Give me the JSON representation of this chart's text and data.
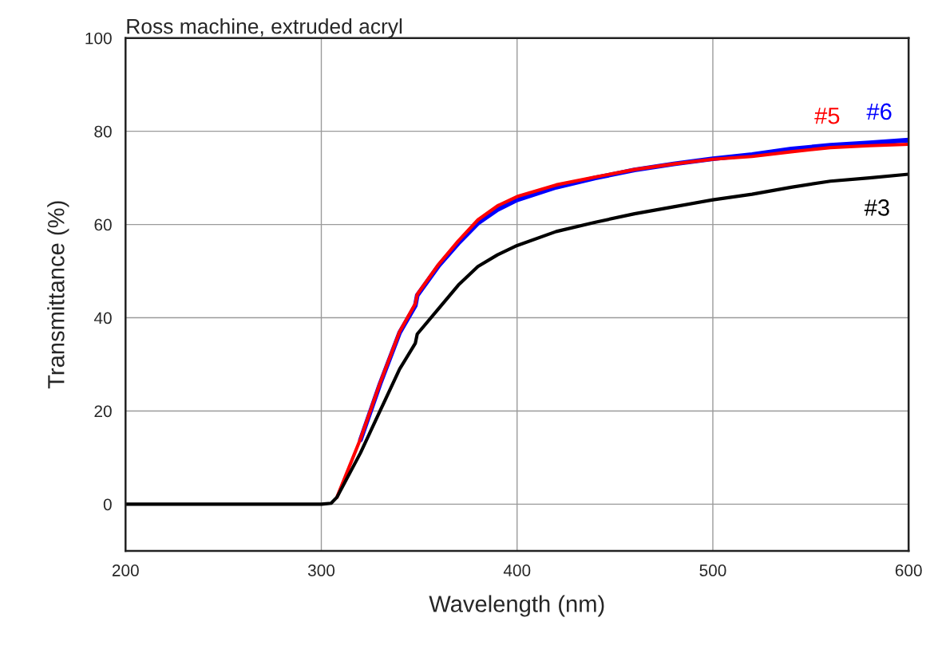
{
  "chart_data": {
    "type": "line",
    "title": "Ross machine, extruded acryl",
    "xlabel": "Wavelength (nm)",
    "ylabel": "Transmittance (%)",
    "xlim": [
      200,
      600
    ],
    "xticks": [
      200,
      300,
      400,
      500,
      600
    ],
    "ylim": [
      -10,
      100
    ],
    "yticks": [
      0,
      20,
      40,
      60,
      80,
      100
    ],
    "grid": true,
    "legend": false,
    "marker": "none",
    "line_style": "solid",
    "series": [
      {
        "name": "#6",
        "color": "#0000ff",
        "x": [
          320,
          330,
          340,
          348,
          349,
          360,
          370,
          380,
          390,
          400,
          420,
          440,
          460,
          480,
          500,
          520,
          540,
          560,
          580,
          600
        ],
        "values": [
          13.8,
          25.8,
          36.8,
          42.6,
          44.8,
          51.2,
          56,
          60.3,
          63.2,
          65.3,
          68,
          70,
          71.7,
          73,
          74.1,
          75,
          76.2,
          77,
          77.5,
          78.1
        ]
      },
      {
        "name": "#5",
        "color": "#ff0000",
        "x": [
          308,
          320,
          330,
          340,
          348,
          349,
          360,
          370,
          380,
          390,
          400,
          420,
          440,
          460,
          480,
          500,
          520,
          540,
          560,
          580,
          600
        ],
        "values": [
          1.5,
          14,
          26,
          37,
          43,
          45,
          51.5,
          56.5,
          61,
          64,
          66,
          68.5,
          70.2,
          71.8,
          73,
          74,
          74.6,
          75.6,
          76.5,
          76.9,
          77.2
        ]
      },
      {
        "name": "#3",
        "color": "#000000",
        "x": [
          200,
          250,
          300,
          305,
          308,
          320,
          330,
          340,
          348,
          349,
          360,
          370,
          380,
          390,
          400,
          420,
          440,
          460,
          480,
          500,
          520,
          540,
          560,
          580,
          600
        ],
        "values": [
          0,
          0,
          0,
          0.2,
          1.5,
          11,
          20,
          29,
          34.5,
          36.5,
          42,
          47,
          51,
          53.5,
          55.5,
          58.5,
          60.5,
          62.3,
          63.8,
          65.3,
          66.5,
          68,
          69.3,
          70,
          70.8
        ]
      }
    ]
  }
}
